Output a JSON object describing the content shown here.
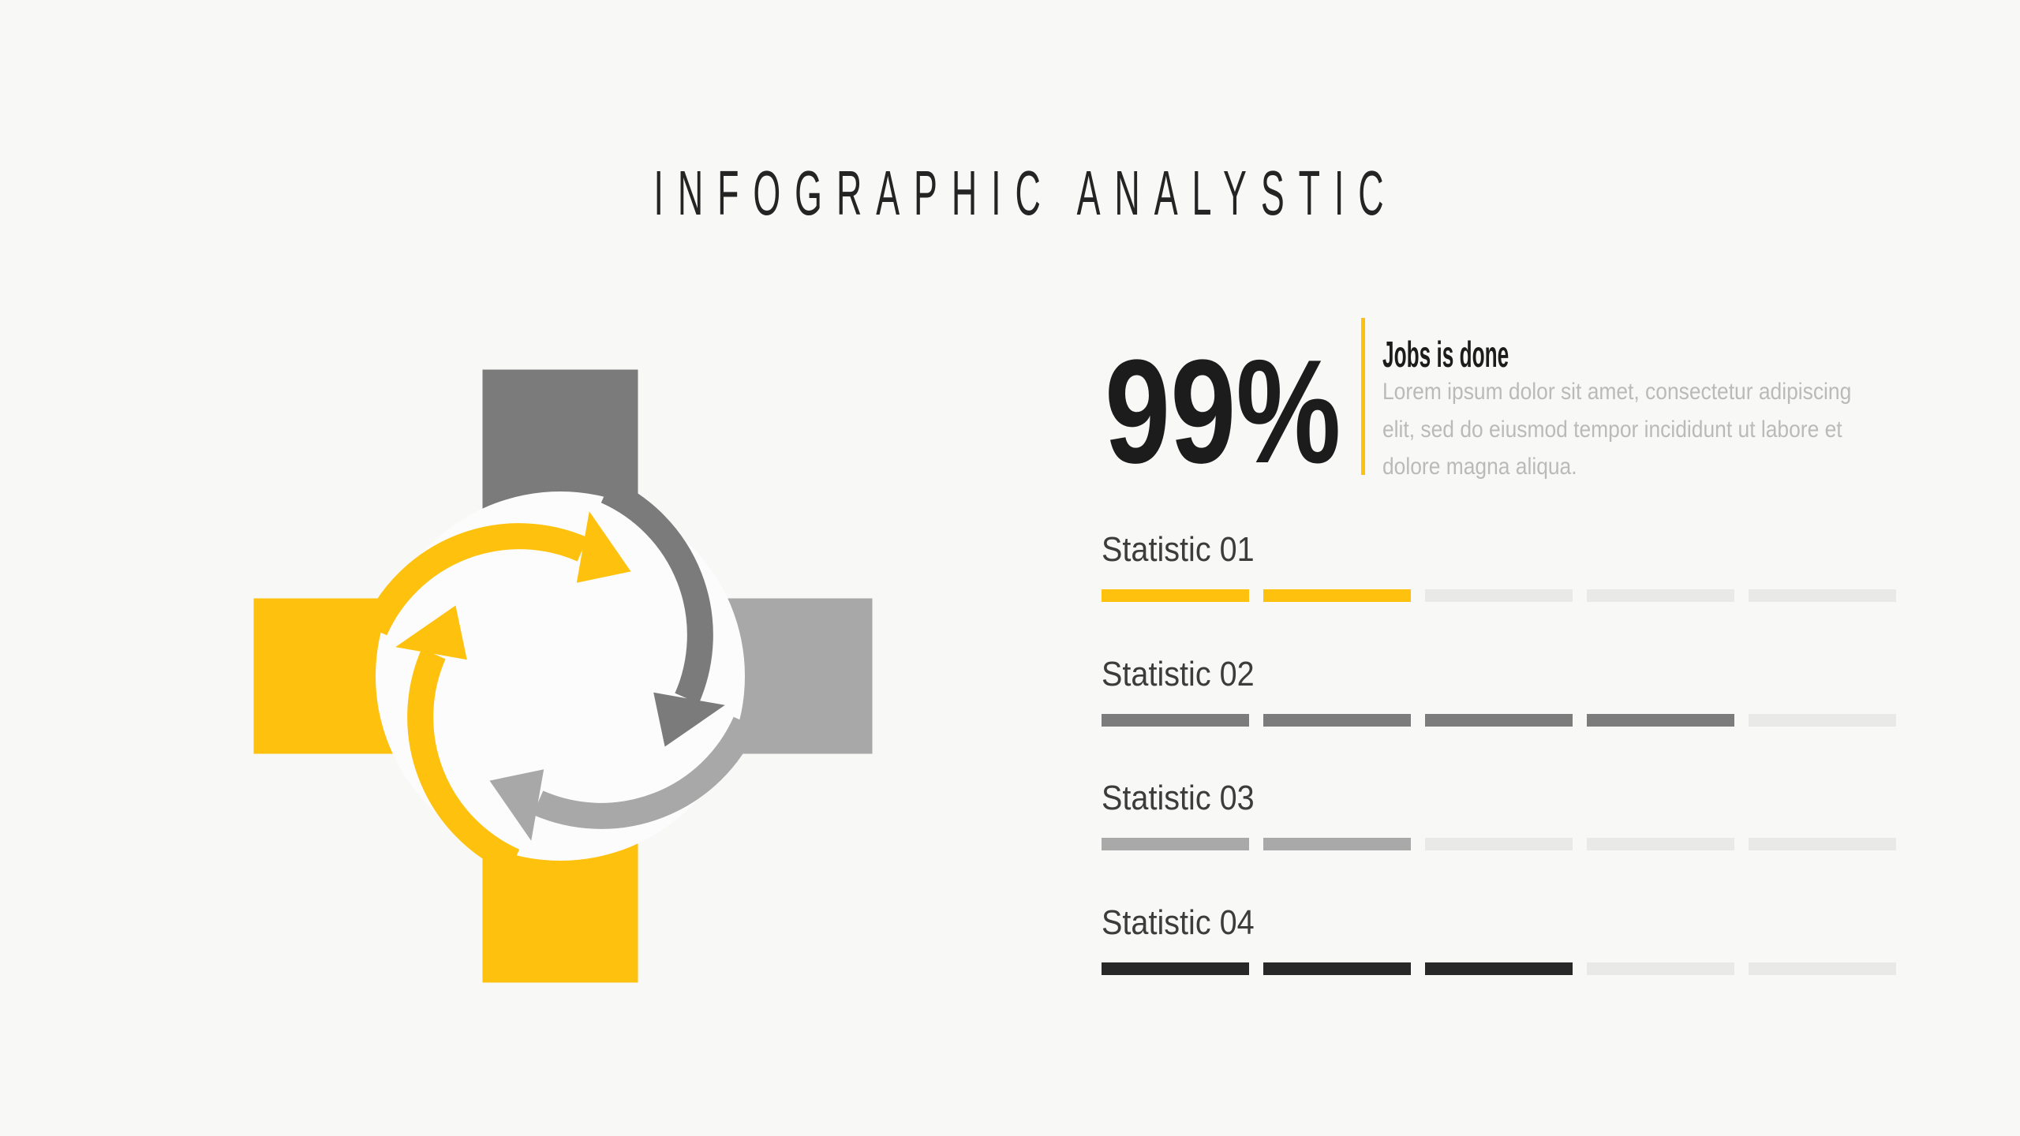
{
  "title": "INFOGRAPHIC ANALYSTIC",
  "colors": {
    "background": "#F8F8F7",
    "accent_yellow": "#FEC10D",
    "dark_gray": "#7B7B7B",
    "light_gray": "#A8A8A8",
    "near_black": "#1C1C1C",
    "disc": "#FCFCFC",
    "empty_segment": "#E9E9E8",
    "body_text_gray": "#BABABA"
  },
  "cycle_graphic": {
    "squares": {
      "top": {
        "color": "#7B7B7B"
      },
      "left": {
        "color": "#FEC10D"
      },
      "right": {
        "color": "#A8A8A8"
      },
      "bottom": {
        "color": "#FEC10D"
      }
    },
    "arrows": [
      {
        "name": "arrow-left-up",
        "color": "#FEC10D"
      },
      {
        "name": "arrow-top-right",
        "color": "#FEC10D"
      },
      {
        "name": "arrow-right-down",
        "color": "#7B7B7B"
      },
      {
        "name": "arrow-bottom-left",
        "color": "#A8A8A8"
      }
    ],
    "disc_color": "#FCFCFC"
  },
  "highlight": {
    "value": "99%",
    "heading": "Jobs is done",
    "description_lines": [
      "Lorem ipsum dolor sit amet, consectetur adipiscing",
      "elit, sed do eiusmod tempor incididunt ut labore et",
      "dolore magna aliqua."
    ]
  },
  "stats": {
    "segments_total": 5,
    "empty_color": "#E9E9E8",
    "rows": [
      {
        "label": "Statistic 01",
        "filled": 2,
        "fill_color": "#FEC10D"
      },
      {
        "label": "Statistic 02",
        "filled": 4,
        "fill_color": "#7C7C7C"
      },
      {
        "label": "Statistic 03",
        "filled": 2,
        "fill_color": "#A9A9A9"
      },
      {
        "label": "Statistic 04",
        "filled": 3,
        "fill_color": "#282828"
      }
    ]
  }
}
